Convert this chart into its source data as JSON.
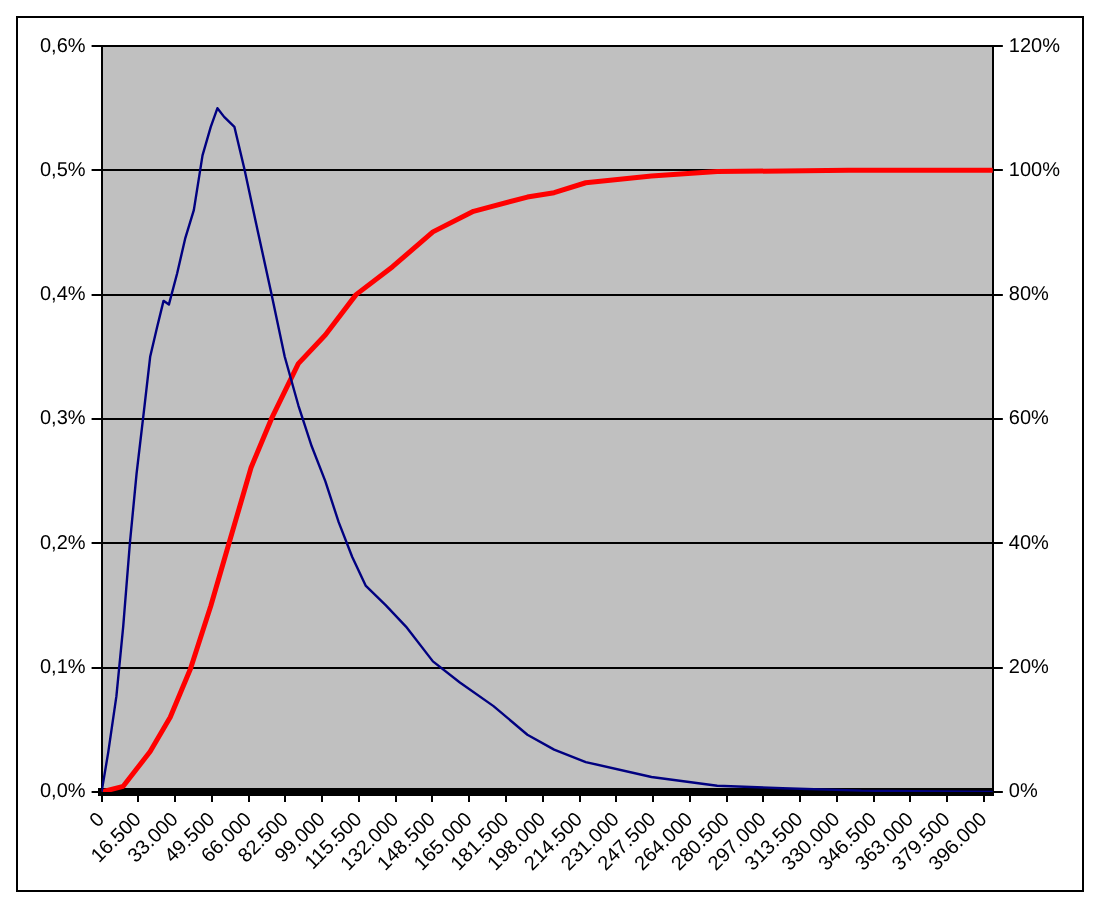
{
  "chart_data": {
    "type": "line",
    "grid": "y",
    "legend": false,
    "marker": "none",
    "line_style": "solid",
    "xlim": [
      0,
      400000
    ],
    "xticks": [
      {
        "value": 0,
        "label": "0"
      },
      {
        "value": 16500,
        "label": "16.500"
      },
      {
        "value": 33000,
        "label": "33.000"
      },
      {
        "value": 49500,
        "label": "49.500"
      },
      {
        "value": 66000,
        "label": "66.000"
      },
      {
        "value": 82500,
        "label": "82.500"
      },
      {
        "value": 99000,
        "label": "99.000"
      },
      {
        "value": 115500,
        "label": "115.500"
      },
      {
        "value": 132000,
        "label": "132.000"
      },
      {
        "value": 148500,
        "label": "148.500"
      },
      {
        "value": 165000,
        "label": "165.000"
      },
      {
        "value": 181500,
        "label": "181.500"
      },
      {
        "value": 198000,
        "label": "198.000"
      },
      {
        "value": 214500,
        "label": "214.500"
      },
      {
        "value": 231000,
        "label": "231.000"
      },
      {
        "value": 247500,
        "label": "247.500"
      },
      {
        "value": 264000,
        "label": "264.000"
      },
      {
        "value": 280500,
        "label": "280.500"
      },
      {
        "value": 297000,
        "label": "297.000"
      },
      {
        "value": 313500,
        "label": "313.500"
      },
      {
        "value": 330000,
        "label": "330.000"
      },
      {
        "value": 346500,
        "label": "346.500"
      },
      {
        "value": 363000,
        "label": "363.000"
      },
      {
        "value": 379500,
        "label": "379.500"
      },
      {
        "value": 396000,
        "label": "396.000"
      }
    ],
    "ylim": [
      0,
      0.6
    ],
    "yticks": [
      {
        "value": 0,
        "label": "0,0%"
      },
      {
        "value": 0.1,
        "label": "0,1%"
      },
      {
        "value": 0.2,
        "label": "0,2%"
      },
      {
        "value": 0.3,
        "label": "0,3%"
      },
      {
        "value": 0.4,
        "label": "0,4%"
      },
      {
        "value": 0.5,
        "label": "0,5%"
      },
      {
        "value": 0.6,
        "label": "0,6%"
      }
    ],
    "y2lim": [
      0,
      120
    ],
    "y2ticks": [
      {
        "value": 0,
        "label": "0%"
      },
      {
        "value": 20,
        "label": "20%"
      },
      {
        "value": 40,
        "label": "40%"
      },
      {
        "value": 60,
        "label": "60%"
      },
      {
        "value": 80,
        "label": "80%"
      },
      {
        "value": 100,
        "label": "100%"
      },
      {
        "value": 120,
        "label": "120%"
      }
    ],
    "series": [
      {
        "color": "#000080",
        "x": [
          0,
          3000,
          6650,
          9700,
          12700,
          15700,
          19300,
          21800,
          24800,
          27800,
          30200,
          33900,
          37500,
          41400,
          45300,
          49000,
          52000,
          55000,
          59600,
          64100,
          70100,
          76200,
          82200,
          88300,
          94300,
          100400,
          106400,
          112500,
          118500,
          127600,
          136600,
          148700,
          160800,
          175900,
          191100,
          203100,
          217300,
          246800,
          276300,
          305700,
          341000,
          400000
        ],
        "values": [
          0,
          0.032,
          0.077,
          0.133,
          0.2,
          0.256,
          0.311,
          0.35,
          0.373,
          0.395,
          0.392,
          0.417,
          0.445,
          0.468,
          0.512,
          0.535,
          0.55,
          0.543,
          0.535,
          0.501,
          0.451,
          0.401,
          0.35,
          0.311,
          0.278,
          0.25,
          0.217,
          0.189,
          0.166,
          0.15,
          0.133,
          0.105,
          0.088,
          0.069,
          0.046,
          0.034,
          0.024,
          0.012,
          0.005,
          0.003,
          0.001,
          0
        ]
      },
      {
        "color": "#ff0000",
        "axis": "y2",
        "x": [
          0,
          9700,
          21800,
          30800,
          39900,
          49000,
          58000,
          67100,
          76200,
          88300,
          100400,
          114200,
          130600,
          148700,
          166900,
          191100,
          203100,
          217300,
          246800,
          276300,
          335200,
          400000
        ],
        "values": [
          0,
          0.9,
          6.5,
          12,
          19.8,
          29.9,
          41,
          52.2,
          60,
          68.9,
          73.5,
          80,
          84.5,
          90.1,
          93.4,
          95.7,
          96.4,
          98,
          99.1,
          99.8,
          100,
          100
        ]
      }
    ]
  }
}
